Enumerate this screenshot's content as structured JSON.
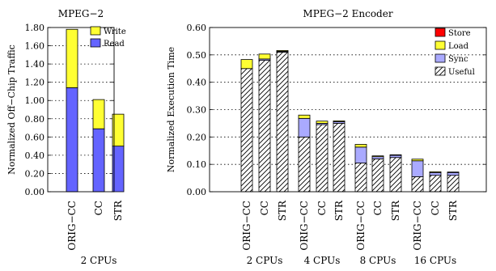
{
  "chart_data": [
    {
      "type": "bar",
      "stacked": true,
      "title": "MPEG−2",
      "ylabel": "Normalized Off−Chip Traffic",
      "ylim": [
        0,
        1.8
      ],
      "yticks": [
        0.0,
        0.2,
        0.4,
        0.6,
        0.8,
        1.0,
        1.2,
        1.4,
        1.6,
        1.8
      ],
      "ytick_labels": [
        "0.00",
        "0.20",
        "0.40",
        "0.60",
        "0.80",
        "1.00",
        "1.20",
        "1.40",
        "1.60",
        "1.80"
      ],
      "grid": true,
      "legend_position": "top-right",
      "groups": [
        {
          "label": "2 CPUs",
          "categories": [
            "ORIG−CC",
            "CC",
            "STR"
          ]
        }
      ],
      "series": [
        {
          "name": "Read",
          "color": "#6464ff",
          "values": [
            1.14,
            0.69,
            0.5
          ]
        },
        {
          "name": "Write",
          "color": "#ffff33",
          "values": [
            0.64,
            0.32,
            0.35
          ]
        }
      ]
    },
    {
      "type": "bar",
      "stacked": true,
      "title": "MPEG−2 Encoder",
      "ylabel": "Normalized Execution Time",
      "ylim": [
        0,
        0.6
      ],
      "yticks": [
        0.0,
        0.1,
        0.2,
        0.3,
        0.4,
        0.5,
        0.6
      ],
      "ytick_labels": [
        "0.00",
        "0.10",
        "0.20",
        "0.30",
        "0.40",
        "0.50",
        "0.60"
      ],
      "grid": true,
      "legend_position": "top-right",
      "groups": [
        {
          "label": "2 CPUs",
          "categories": [
            "ORIG−CC",
            "CC",
            "STR"
          ]
        },
        {
          "label": "4 CPUs",
          "categories": [
            "ORIG−CC",
            "CC",
            "STR"
          ]
        },
        {
          "label": "8 CPUs",
          "categories": [
            "ORIG−CC",
            "CC",
            "STR"
          ]
        },
        {
          "label": "16 CPUs",
          "categories": [
            "ORIG−CC",
            "CC",
            "STR"
          ]
        }
      ],
      "series": [
        {
          "name": "Useful",
          "color": "#ffffff",
          "pattern": "hatch",
          "values": [
            0.45,
            0.48,
            0.51,
            0.2,
            0.245,
            0.25,
            0.105,
            0.12,
            0.125,
            0.055,
            0.06,
            0.06
          ]
        },
        {
          "name": "Sync",
          "color": "#aaaaff",
          "values": [
            0.0,
            0.005,
            0.003,
            0.068,
            0.005,
            0.006,
            0.058,
            0.008,
            0.008,
            0.058,
            0.01,
            0.01
          ]
        },
        {
          "name": "Load",
          "color": "#ffff33",
          "values": [
            0.033,
            0.018,
            0.003,
            0.012,
            0.008,
            0.003,
            0.01,
            0.003,
            0.002,
            0.006,
            0.003,
            0.002
          ]
        },
        {
          "name": "Store",
          "color": "#ff0000",
          "values": [
            0.0,
            0.0,
            0.0,
            0.0,
            0.0,
            0.0,
            0.0,
            0.0,
            0.0,
            0.0,
            0.0,
            0.0
          ]
        }
      ]
    }
  ]
}
